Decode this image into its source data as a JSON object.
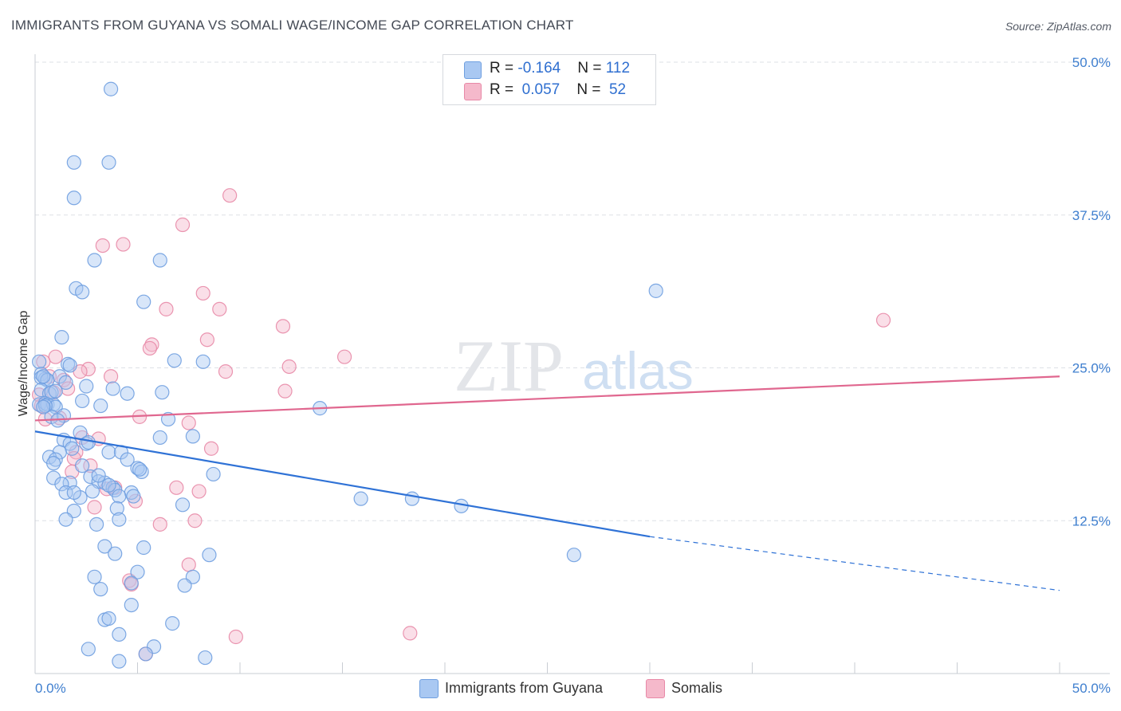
{
  "title": "IMMIGRANTS FROM GUYANA VS SOMALI WAGE/INCOME GAP CORRELATION CHART",
  "source": "Source: ZipAtlas.com",
  "watermark": {
    "zip": "ZIP",
    "atlas": "atlas"
  },
  "legend_top": {
    "rows": [
      {
        "r_label": "R = ",
        "r_value": "-0.164",
        "n_label": "N = ",
        "n_value": "112"
      },
      {
        "r_label": "R = ",
        "r_value": " 0.057",
        "n_label": "N = ",
        "n_value": " 52"
      }
    ]
  },
  "colors": {
    "blue_fill": "#a9c8f2",
    "blue_stroke": "#6f9fe0",
    "blue_line": "#2f72d6",
    "pink_fill": "#f5b9cb",
    "pink_stroke": "#e889a7",
    "pink_line": "#e0678f",
    "tick_text": "#3f7fcf",
    "grid": "#dde0e6"
  },
  "chart_data": {
    "type": "scatter",
    "title": "IMMIGRANTS FROM GUYANA VS SOMALI WAGE/INCOME GAP CORRELATION CHART",
    "xlabel": "",
    "ylabel": "Wage/Income Gap",
    "xlim": [
      0,
      50
    ],
    "ylim": [
      0,
      50
    ],
    "x_tick_labels": [
      "0.0%",
      "50.0%"
    ],
    "y_tick_labels": [
      "12.5%",
      "25.0%",
      "37.5%",
      "50.0%"
    ],
    "y_ticks": [
      12.5,
      25.0,
      37.5,
      50.0
    ],
    "grid": true,
    "legend_position": "bottom",
    "series": [
      {
        "name": "Immigrants from Guyana",
        "r": -0.164,
        "n": 112,
        "trend": {
          "x": [
            0,
            30
          ],
          "y": [
            19.8,
            11.2
          ],
          "dashed_to": [
            50,
            6.8
          ]
        },
        "points": [
          [
            3.7,
            47.8
          ],
          [
            3.6,
            41.8
          ],
          [
            1.9,
            41.8
          ],
          [
            1.9,
            38.9
          ],
          [
            2.9,
            33.8
          ],
          [
            6.1,
            33.8
          ],
          [
            2.0,
            31.5
          ],
          [
            2.3,
            31.2
          ],
          [
            5.3,
            30.4
          ],
          [
            30.3,
            31.3
          ],
          [
            1.3,
            27.5
          ],
          [
            0.2,
            25.5
          ],
          [
            0.3,
            24.5
          ],
          [
            0.5,
            24.1
          ],
          [
            1.6,
            25.3
          ],
          [
            1.7,
            25.2
          ],
          [
            6.8,
            25.6
          ],
          [
            8.2,
            25.5
          ],
          [
            1.2,
            24.3
          ],
          [
            0.3,
            24.2
          ],
          [
            0.6,
            24.0
          ],
          [
            1.5,
            23.8
          ],
          [
            2.5,
            23.5
          ],
          [
            0.3,
            23.2
          ],
          [
            0.7,
            22.9
          ],
          [
            3.8,
            23.3
          ],
          [
            4.5,
            22.9
          ],
          [
            6.2,
            23.0
          ],
          [
            0.2,
            22.0
          ],
          [
            0.5,
            22.1
          ],
          [
            0.6,
            22.0
          ],
          [
            0.9,
            22.0
          ],
          [
            1.0,
            21.8
          ],
          [
            3.2,
            21.9
          ],
          [
            13.9,
            21.7
          ],
          [
            0.8,
            21.0
          ],
          [
            1.4,
            21.1
          ],
          [
            6.5,
            20.8
          ],
          [
            1.1,
            20.7
          ],
          [
            2.2,
            19.7
          ],
          [
            6.1,
            19.3
          ],
          [
            7.7,
            19.4
          ],
          [
            1.4,
            19.1
          ],
          [
            1.7,
            18.8
          ],
          [
            2.5,
            18.8
          ],
          [
            1.8,
            18.4
          ],
          [
            1.2,
            18.1
          ],
          [
            3.6,
            18.1
          ],
          [
            4.2,
            18.1
          ],
          [
            0.7,
            17.7
          ],
          [
            1.0,
            17.5
          ],
          [
            0.9,
            17.2
          ],
          [
            4.5,
            17.5
          ],
          [
            2.3,
            17.0
          ],
          [
            5.0,
            16.8
          ],
          [
            5.2,
            16.5
          ],
          [
            8.7,
            16.3
          ],
          [
            0.9,
            16.0
          ],
          [
            2.7,
            16.1
          ],
          [
            3.1,
            15.7
          ],
          [
            3.4,
            15.6
          ],
          [
            1.7,
            15.6
          ],
          [
            1.3,
            15.5
          ],
          [
            3.8,
            15.2
          ],
          [
            3.9,
            15.0
          ],
          [
            1.5,
            14.8
          ],
          [
            4.7,
            14.8
          ],
          [
            4.8,
            14.5
          ],
          [
            2.2,
            14.4
          ],
          [
            4.1,
            14.5
          ],
          [
            15.9,
            14.3
          ],
          [
            18.4,
            14.3
          ],
          [
            20.8,
            13.7
          ],
          [
            7.2,
            13.8
          ],
          [
            1.9,
            13.3
          ],
          [
            4.0,
            13.5
          ],
          [
            1.5,
            12.6
          ],
          [
            4.1,
            12.6
          ],
          [
            3.0,
            12.2
          ],
          [
            26.3,
            9.7
          ],
          [
            3.4,
            10.4
          ],
          [
            5.3,
            10.3
          ],
          [
            3.9,
            9.8
          ],
          [
            8.5,
            9.7
          ],
          [
            5.0,
            8.3
          ],
          [
            2.9,
            7.9
          ],
          [
            7.7,
            7.9
          ],
          [
            4.7,
            7.4
          ],
          [
            7.3,
            7.2
          ],
          [
            3.2,
            6.9
          ],
          [
            4.7,
            5.6
          ],
          [
            3.4,
            4.4
          ],
          [
            3.6,
            4.5
          ],
          [
            6.7,
            4.1
          ],
          [
            4.1,
            3.2
          ],
          [
            2.6,
            2.0
          ],
          [
            5.8,
            2.2
          ],
          [
            8.3,
            1.3
          ],
          [
            4.1,
            1.0
          ],
          [
            5.4,
            1.6
          ],
          [
            0.4,
            24.3
          ],
          [
            0.8,
            23.0
          ],
          [
            1.0,
            23.1
          ],
          [
            2.3,
            22.3
          ],
          [
            0.5,
            21.9
          ],
          [
            0.4,
            21.8
          ],
          [
            2.6,
            18.9
          ],
          [
            3.1,
            16.2
          ],
          [
            1.9,
            14.8
          ],
          [
            3.6,
            15.4
          ],
          [
            2.8,
            14.9
          ],
          [
            5.1,
            16.7
          ]
        ]
      },
      {
        "name": "Somalis",
        "r": 0.057,
        "n": 52,
        "trend": {
          "x": [
            0,
            50
          ],
          "y": [
            20.7,
            24.3
          ]
        },
        "points": [
          [
            9.5,
            39.1
          ],
          [
            7.2,
            36.7
          ],
          [
            4.3,
            35.1
          ],
          [
            3.3,
            35.0
          ],
          [
            8.2,
            31.1
          ],
          [
            6.4,
            29.8
          ],
          [
            9.0,
            29.8
          ],
          [
            12.1,
            28.4
          ],
          [
            41.4,
            28.9
          ],
          [
            8.4,
            27.3
          ],
          [
            5.7,
            26.9
          ],
          [
            5.6,
            26.6
          ],
          [
            15.1,
            25.9
          ],
          [
            1.0,
            25.9
          ],
          [
            0.4,
            25.5
          ],
          [
            2.6,
            24.9
          ],
          [
            12.4,
            25.1
          ],
          [
            2.2,
            24.7
          ],
          [
            9.3,
            24.7
          ],
          [
            3.7,
            24.3
          ],
          [
            0.7,
            24.3
          ],
          [
            1.4,
            24.0
          ],
          [
            1.6,
            23.3
          ],
          [
            12.2,
            23.1
          ],
          [
            0.9,
            23.0
          ],
          [
            0.2,
            22.8
          ],
          [
            0.3,
            21.9
          ],
          [
            5.1,
            21.0
          ],
          [
            7.5,
            20.5
          ],
          [
            0.5,
            20.8
          ],
          [
            1.2,
            20.9
          ],
          [
            3.1,
            19.2
          ],
          [
            2.3,
            19.3
          ],
          [
            8.6,
            18.4
          ],
          [
            2.0,
            18.1
          ],
          [
            1.9,
            17.6
          ],
          [
            2.7,
            17.0
          ],
          [
            1.8,
            16.5
          ],
          [
            6.9,
            15.2
          ],
          [
            8.0,
            14.9
          ],
          [
            3.5,
            15.1
          ],
          [
            4.9,
            14.1
          ],
          [
            2.9,
            13.6
          ],
          [
            7.8,
            12.5
          ],
          [
            6.1,
            12.2
          ],
          [
            4.6,
            7.6
          ],
          [
            7.5,
            8.9
          ],
          [
            4.7,
            7.3
          ],
          [
            9.8,
            3.0
          ],
          [
            18.3,
            3.3
          ],
          [
            5.4,
            1.6
          ],
          [
            3.9,
            15.2
          ]
        ]
      }
    ]
  },
  "legend_bottom": [
    {
      "label": "Immigrants from Guyana"
    },
    {
      "label": "Somalis"
    }
  ]
}
